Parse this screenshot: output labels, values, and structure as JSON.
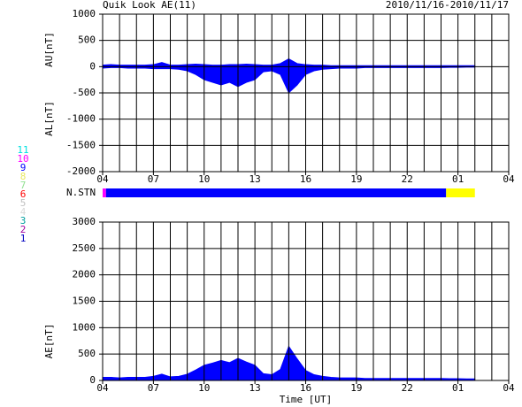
{
  "header": {
    "title": "Quik Look AE(11)",
    "date_range": "2010/11/16-2010/11/17"
  },
  "station_legend": [
    {
      "label": "11",
      "color": "#00e0e0"
    },
    {
      "label": "10",
      "color": "#ff00ff"
    },
    {
      "label": "9",
      "color": "#0000ff"
    },
    {
      "label": "8",
      "color": "#e8e860"
    },
    {
      "label": "7",
      "color": "#90e090"
    },
    {
      "label": "6",
      "color": "#ff0000"
    },
    {
      "label": "5",
      "color": "#c0c0c0"
    },
    {
      "label": "4",
      "color": "#d8d8d8"
    },
    {
      "label": "3",
      "color": "#00a0a0"
    },
    {
      "label": "2",
      "color": "#a000a0"
    },
    {
      "label": "1",
      "color": "#0000c0"
    }
  ],
  "nstn": {
    "label": "N.STN",
    "segments": [
      {
        "start": 0,
        "end": 0.2,
        "color": "#ff00ff"
      },
      {
        "start": 0.2,
        "end": 20.3,
        "color": "#0000ff"
      },
      {
        "start": 20.3,
        "end": 22,
        "color": "#ffff00"
      }
    ]
  },
  "chart_data": [
    {
      "type": "area",
      "ylabels": [
        "AU[nT]",
        "AL[nT]"
      ],
      "xlim": [
        0,
        24
      ],
      "xticks": [
        {
          "value": 0,
          "label": "04"
        },
        {
          "value": 3,
          "label": "07"
        },
        {
          "value": 6,
          "label": "10"
        },
        {
          "value": 9,
          "label": "13"
        },
        {
          "value": 12,
          "label": "16"
        },
        {
          "value": 15,
          "label": "19"
        },
        {
          "value": 18,
          "label": "22"
        },
        {
          "value": 21,
          "label": "01"
        },
        {
          "value": 24,
          "label": "04"
        }
      ],
      "x_minor_step": 1,
      "ylim": [
        -2000,
        1000
      ],
      "yticks": [
        -2000,
        -1500,
        -1000,
        -500,
        0,
        500,
        1000
      ],
      "grid": true,
      "x": [
        0,
        0.5,
        1,
        1.5,
        2,
        2.5,
        3,
        3.5,
        4,
        4.5,
        5,
        5.5,
        6,
        6.5,
        7,
        7.5,
        8,
        8.5,
        9,
        9.5,
        10,
        10.5,
        11,
        11.5,
        12,
        12.5,
        13,
        13.5,
        14,
        14.5,
        15,
        15.5,
        16,
        16.5,
        17,
        17.5,
        18,
        18.5,
        19,
        19.5,
        20,
        20.5,
        21,
        21.5,
        22
      ],
      "series": [
        {
          "color": "#0000ff",
          "values": [
            30,
            40,
            30,
            30,
            30,
            30,
            40,
            80,
            30,
            30,
            40,
            50,
            40,
            30,
            30,
            40,
            40,
            50,
            40,
            30,
            30,
            60,
            150,
            60,
            40,
            30,
            30,
            20,
            20,
            20,
            20,
            20,
            20,
            20,
            20,
            20,
            20,
            20,
            20,
            20,
            20,
            20,
            20,
            20,
            20
          ]
        },
        {
          "color": "#0000ff",
          "values": [
            -30,
            -20,
            -20,
            -30,
            -30,
            -30,
            -40,
            -40,
            -40,
            -50,
            -80,
            -150,
            -250,
            -300,
            -350,
            -300,
            -380,
            -300,
            -250,
            -100,
            -80,
            -150,
            -500,
            -350,
            -150,
            -80,
            -50,
            -40,
            -30,
            -30,
            -30,
            -20,
            -20,
            -20,
            -20,
            -20,
            -20,
            -20,
            -20,
            -20,
            -20,
            -15,
            -15,
            -10,
            -10
          ]
        }
      ]
    },
    {
      "type": "area",
      "ylabels": [
        "AE[nT]"
      ],
      "xlabel": "Time [UT]",
      "xlim": [
        0,
        24
      ],
      "xticks": [
        {
          "value": 0,
          "label": "04"
        },
        {
          "value": 3,
          "label": "07"
        },
        {
          "value": 6,
          "label": "10"
        },
        {
          "value": 9,
          "label": "13"
        },
        {
          "value": 12,
          "label": "16"
        },
        {
          "value": 15,
          "label": "19"
        },
        {
          "value": 18,
          "label": "22"
        },
        {
          "value": 21,
          "label": "01"
        },
        {
          "value": 24,
          "label": "04"
        }
      ],
      "x_minor_step": 1,
      "ylim": [
        0,
        3000
      ],
      "yticks": [
        0,
        500,
        1000,
        1500,
        2000,
        2500,
        3000
      ],
      "grid": true,
      "x": [
        0,
        0.5,
        1,
        1.5,
        2,
        2.5,
        3,
        3.5,
        4,
        4.5,
        5,
        5.5,
        6,
        6.5,
        7,
        7.5,
        8,
        8.5,
        9,
        9.5,
        10,
        10.5,
        11,
        11.5,
        12,
        12.5,
        13,
        13.5,
        14,
        14.5,
        15,
        15.5,
        16,
        16.5,
        17,
        17.5,
        18,
        18.5,
        19,
        19.5,
        20,
        20.5,
        21,
        21.5,
        22
      ],
      "series": [
        {
          "color": "#0000ff",
          "values": [
            60,
            60,
            50,
            60,
            60,
            60,
            80,
            120,
            70,
            80,
            120,
            200,
            290,
            330,
            380,
            340,
            420,
            350,
            290,
            130,
            110,
            210,
            650,
            410,
            190,
            110,
            80,
            60,
            50,
            50,
            50,
            40,
            40,
            40,
            40,
            40,
            40,
            40,
            40,
            40,
            40,
            35,
            35,
            30,
            30
          ]
        }
      ]
    }
  ]
}
